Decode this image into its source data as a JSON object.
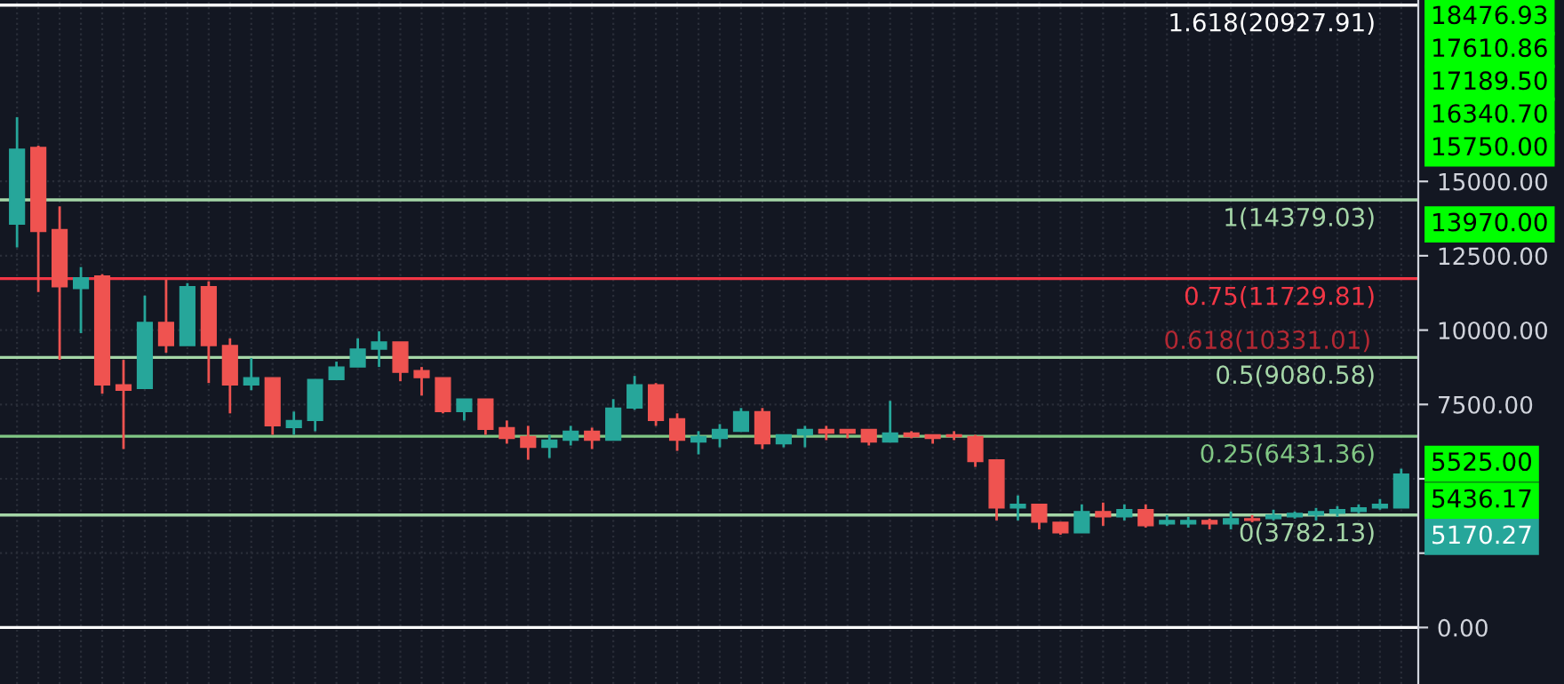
{
  "chart_data": {
    "type": "candlestick",
    "categories": [
      null,
      null,
      null,
      null,
      null,
      null,
      null,
      null,
      null,
      null,
      null,
      null,
      null,
      null,
      null,
      null,
      null,
      null,
      null,
      null,
      null,
      null,
      null,
      null,
      null,
      null,
      null,
      null,
      null,
      null,
      null,
      null,
      null,
      null,
      null,
      null,
      null,
      null,
      null,
      null,
      null,
      null,
      null,
      null,
      null,
      null,
      null,
      null,
      null,
      null,
      null,
      null,
      null,
      null,
      null,
      null,
      null,
      null,
      null,
      null,
      null,
      null,
      null,
      null,
      null,
      null
    ],
    "ohlc": [
      [
        13560,
        17160,
        12780,
        16080
      ],
      [
        16140,
        16200,
        11280,
        13320
      ],
      [
        13380,
        14160,
        9000,
        11460
      ],
      [
        11400,
        12120,
        9900,
        11760
      ],
      [
        11820,
        11880,
        7860,
        8160
      ],
      [
        8160,
        9000,
        6000,
        7980
      ],
      [
        8040,
        11160,
        8040,
        10260
      ],
      [
        10260,
        11700,
        9240,
        9480
      ],
      [
        9480,
        11580,
        9480,
        11460
      ],
      [
        11460,
        11640,
        8220,
        9480
      ],
      [
        9480,
        9720,
        7200,
        8160
      ],
      [
        8160,
        9060,
        7980,
        8400
      ],
      [
        8400,
        8400,
        6480,
        6780
      ],
      [
        6720,
        7260,
        6480,
        6960
      ],
      [
        6960,
        8340,
        6600,
        8340
      ],
      [
        8340,
        8940,
        8340,
        8760
      ],
      [
        8760,
        9720,
        8760,
        9360
      ],
      [
        9360,
        9960,
        8760,
        9600
      ],
      [
        9600,
        9600,
        8280,
        8580
      ],
      [
        8640,
        8760,
        7800,
        8400
      ],
      [
        8400,
        8400,
        7200,
        7260
      ],
      [
        7260,
        7680,
        6960,
        7680
      ],
      [
        7680,
        7680,
        6480,
        6660
      ],
      [
        6720,
        6960,
        6180,
        6360
      ],
      [
        6420,
        6780,
        5640,
        6060
      ],
      [
        6060,
        6480,
        5700,
        6300
      ],
      [
        6300,
        6780,
        6120,
        6600
      ],
      [
        6600,
        6720,
        6000,
        6300
      ],
      [
        6300,
        7680,
        6300,
        7380
      ],
      [
        7380,
        8460,
        7320,
        8160
      ],
      [
        8160,
        8220,
        6780,
        6960
      ],
      [
        7020,
        7200,
        5940,
        6300
      ],
      [
        6240,
        6600,
        5820,
        6420
      ],
      [
        6360,
        6840,
        6060,
        6660
      ],
      [
        6600,
        7380,
        6600,
        7260
      ],
      [
        7260,
        7380,
        6000,
        6180
      ],
      [
        6180,
        6480,
        6060,
        6480
      ],
      [
        6480,
        6780,
        6060,
        6660
      ],
      [
        6660,
        6780,
        6300,
        6540
      ],
      [
        6660,
        6660,
        6360,
        6540
      ],
      [
        6660,
        6660,
        6120,
        6240
      ],
      [
        6240,
        7620,
        6240,
        6540
      ],
      [
        6540,
        6600,
        6360,
        6420
      ],
      [
        6480,
        6480,
        6180,
        6360
      ],
      [
        6480,
        6600,
        6300,
        6420
      ],
      [
        6420,
        6480,
        5400,
        5580
      ],
      [
        5640,
        5640,
        3600,
        4020
      ],
      [
        4020,
        4440,
        3600,
        4140
      ],
      [
        4140,
        4140,
        3300,
        3540
      ],
      [
        3540,
        3540,
        3120,
        3180
      ],
      [
        3180,
        4140,
        3180,
        3900
      ],
      [
        3900,
        4200,
        3420,
        3720
      ],
      [
        3720,
        4140,
        3600,
        3960
      ],
      [
        3960,
        4140,
        3360,
        3420
      ],
      [
        3480,
        3780,
        3420,
        3600
      ],
      [
        3480,
        3720,
        3360,
        3600
      ],
      [
        3600,
        3660,
        3300,
        3480
      ],
      [
        3480,
        3900,
        3300,
        3660
      ],
      [
        3660,
        3780,
        3540,
        3600
      ],
      [
        3660,
        3960,
        3600,
        3780
      ],
      [
        3720,
        3900,
        3660,
        3840
      ],
      [
        3780,
        4020,
        3600,
        3900
      ],
      [
        3840,
        4080,
        3720,
        3960
      ],
      [
        3900,
        4140,
        3840,
        4020
      ],
      [
        4020,
        4320,
        3960,
        4140
      ],
      [
        4020,
        5340,
        4020,
        5160
      ]
    ],
    "colors": [
      "#26a69a",
      "#ef5350",
      "#ef5350",
      "#26a69a",
      "#ef5350",
      "#ef5350",
      "#26a69a",
      "#ef5350",
      "#26a69a",
      "#ef5350",
      "#ef5350",
      "#26a69a",
      "#ef5350",
      "#26a69a",
      "#26a69a",
      "#26a69a",
      "#26a69a",
      "#26a69a",
      "#ef5350",
      "#ef5350",
      "#ef5350",
      "#26a69a",
      "#ef5350",
      "#ef5350",
      "#ef5350",
      "#26a69a",
      "#26a69a",
      "#ef5350",
      "#26a69a",
      "#26a69a",
      "#ef5350",
      "#ef5350",
      "#26a69a",
      "#26a69a",
      "#26a69a",
      "#ef5350",
      "#26a69a",
      "#26a69a",
      "#ef5350",
      "#ef5350",
      "#ef5350",
      "#26a69a",
      "#ef5350",
      "#ef5350",
      "#ef5350",
      "#ef5350",
      "#ef5350",
      "#26a69a",
      "#ef5350",
      "#ef5350",
      "#26a69a",
      "#ef5350",
      "#26a69a",
      "#ef5350",
      "#26a69a",
      "#26a69a",
      "#ef5350",
      "#26a69a",
      "#ef5350",
      "#26a69a",
      "#26a69a",
      "#26a69a",
      "#26a69a",
      "#26a69a",
      "#26a69a",
      "#26a69a"
    ],
    "ylim": [
      -1900,
      21100
    ],
    "yticks": [
      {
        "value": 0,
        "label": "0.00"
      },
      {
        "value": 2500,
        "label": null
      },
      {
        "value": 5000,
        "label": null
      },
      {
        "value": 7500,
        "label": "7500.00"
      },
      {
        "value": 10000,
        "label": "10000.00"
      },
      {
        "value": 12500,
        "label": "12500.00"
      },
      {
        "value": 15000,
        "label": "15000.00"
      }
    ],
    "grid": true,
    "ref_lines": [
      {
        "axis": "y",
        "value": 20927.91,
        "label": "1.618(20927.91)",
        "color": "#ffffff"
      },
      {
        "axis": "y",
        "value": 14379.03,
        "label": "1(14379.03)",
        "color": "#a5d6a7"
      },
      {
        "axis": "y",
        "value": 11729.81,
        "label": "0.75(11729.81)",
        "color": "#f23645"
      },
      {
        "axis": "y",
        "value": 9080.58,
        "label": "0.5(9080.58)",
        "color": "#a5d6a7"
      },
      {
        "axis": "y",
        "value": 6431.36,
        "label": "0.25(6431.36)",
        "color": "#81c784"
      },
      {
        "axis": "y",
        "value": 3782.13,
        "label": "0(3782.13)",
        "color": "#a5d6a7"
      },
      {
        "axis": "y",
        "value": 0,
        "label": null,
        "color": "#ffffff"
      }
    ],
    "annotations": [
      "0.618(10331.01)",
      "18476.93",
      "17610.86",
      "17189.50",
      "16340.70",
      "15750.00",
      "13970.00",
      "5525.00",
      "5436.17",
      "5170.27"
    ]
  }
}
